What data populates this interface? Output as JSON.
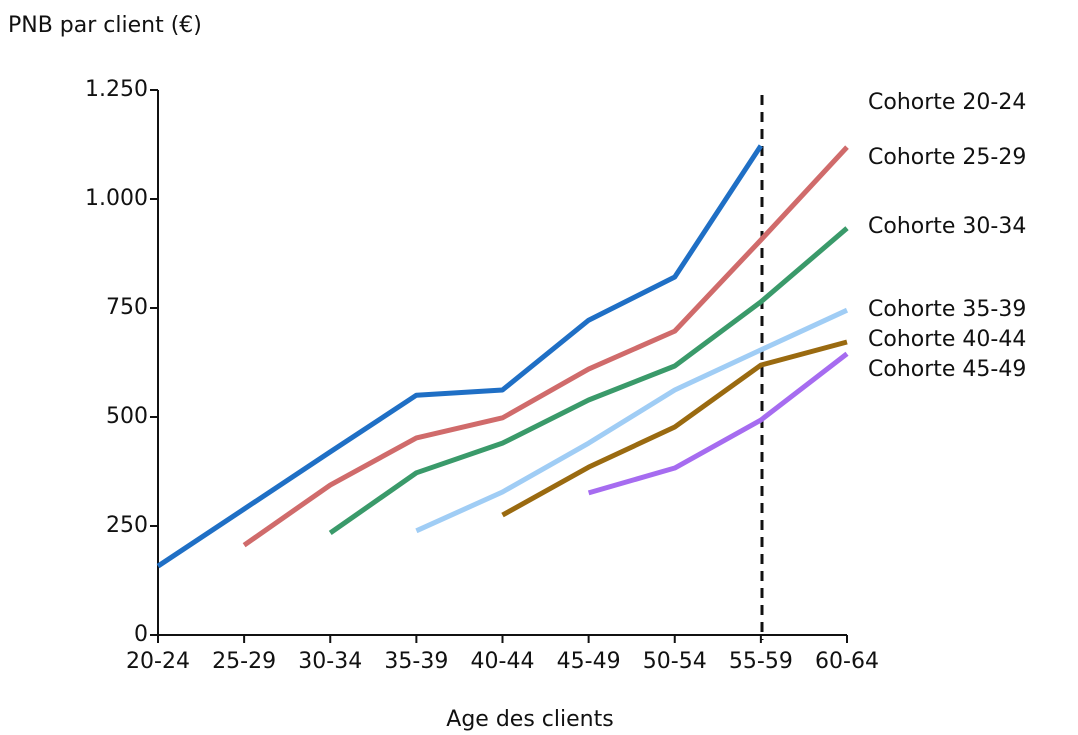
{
  "chart_data": {
    "type": "line",
    "title": "PNB par client (€)",
    "x_label": "Age des clients",
    "categories": [
      "20-24",
      "25-29",
      "30-34",
      "35-39",
      "40-44",
      "45-49",
      "50-54",
      "55-59",
      "60-64"
    ],
    "ylim": [
      0,
      1250
    ],
    "yticks": [
      0,
      250,
      500,
      750,
      {
        "value": 1000,
        "label": "1.000"
      },
      {
        "value": 1250,
        "label": "1.250"
      }
    ],
    "series": [
      {
        "name": "Cohorte 20-24",
        "color": "#1f6fc5",
        "values": [
          158,
          289,
          420,
          550,
          562,
          722,
          821,
          1122,
          null
        ]
      },
      {
        "name": "Cohorte 25-29",
        "color": "#d06b6b",
        "values": [
          null,
          206,
          344,
          452,
          498,
          610,
          697,
          906,
          1119
        ]
      },
      {
        "name": "Cohorte 30-34",
        "color": "#3a9a6a",
        "values": [
          null,
          null,
          234,
          372,
          440,
          539,
          617,
          764,
          933
        ]
      },
      {
        "name": "Cohorte 35-39",
        "color": "#a0cdf5",
        "values": [
          null,
          null,
          null,
          239,
          328,
          440,
          562,
          654,
          745
        ]
      },
      {
        "name": "Cohorte 40-44",
        "color": "#9a6a10",
        "values": [
          null,
          null,
          null,
          null,
          275,
          385,
          477,
          619,
          672
        ]
      },
      {
        "name": "Cohorte 45-49",
        "color": "#a66cf0",
        "values": [
          null,
          null,
          null,
          null,
          null,
          326,
          383,
          493,
          645
        ]
      }
    ]
  }
}
